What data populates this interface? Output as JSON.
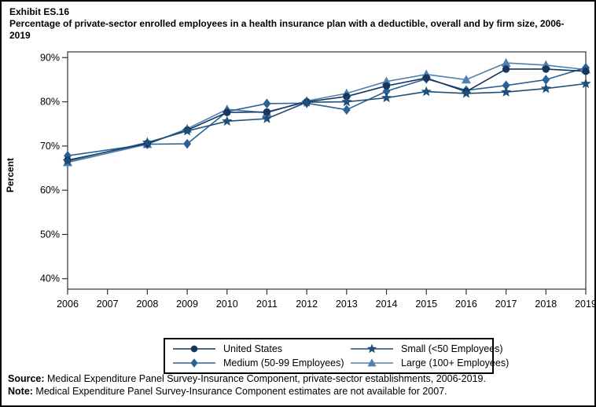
{
  "header": {
    "exhibit": "Exhibit ES.16",
    "title": "Percentage of private-sector enrolled employees in a health insurance plan with a deductible, overall and by firm size, 2006-2019"
  },
  "chart_data": {
    "type": "line",
    "title": "Percentage of private-sector enrolled employees in a health insurance plan with a deductible, overall and by firm size, 2006-2019",
    "xlabel": "",
    "ylabel": "Percent",
    "x": [
      2006,
      2007,
      2008,
      2009,
      2010,
      2011,
      2012,
      2013,
      2014,
      2015,
      2016,
      2017,
      2018,
      2019
    ],
    "ytick_values": [
      40,
      50,
      60,
      70,
      80,
      90
    ],
    "ytick_labels": [
      "40%",
      "50%",
      "60%",
      "70%",
      "80%",
      "90%"
    ],
    "ylim": [
      37.5,
      91.5
    ],
    "grid": false,
    "legend_position": "bottom",
    "missing_data_note": "No data for 2007; lines connect 2006 directly to 2008",
    "series": [
      {
        "name": "United States",
        "marker": "circle",
        "color": "#17365D",
        "values": [
          66.8,
          null,
          70.6,
          73.6,
          77.6,
          77.7,
          80.0,
          81.2,
          83.6,
          85.4,
          82.3,
          87.4,
          87.4,
          86.9
        ]
      },
      {
        "name": "Small (<50 Employees)",
        "marker": "star",
        "color": "#1F4E79",
        "values": [
          66.6,
          null,
          70.8,
          73.4,
          75.6,
          76.2,
          79.9,
          80.0,
          80.9,
          82.3,
          81.9,
          82.2,
          83.0,
          84.1
        ]
      },
      {
        "name": "Medium (50-99 Employees)",
        "marker": "diamond",
        "color": "#2B6195",
        "values": [
          67.8,
          null,
          70.4,
          70.5,
          77.8,
          79.6,
          79.7,
          78.2,
          82.4,
          85.2,
          82.6,
          83.7,
          85.0,
          87.7
        ]
      },
      {
        "name": "Large (100+ Employees)",
        "marker": "triangle",
        "color": "#4F81B0",
        "values": [
          66.3,
          null,
          70.4,
          73.9,
          78.3,
          77.5,
          80.2,
          81.9,
          84.6,
          86.2,
          85.0,
          88.8,
          88.3,
          87.3
        ]
      }
    ]
  },
  "footer": {
    "source_label": "Source:",
    "source_text": " Medical Expenditure Panel Survey-Insurance Component, private-sector establishments, 2006-2019.",
    "note_label": "Note:",
    "note_text": " Medical Expenditure Panel Survey-Insurance Component estimates are not available for 2007."
  }
}
